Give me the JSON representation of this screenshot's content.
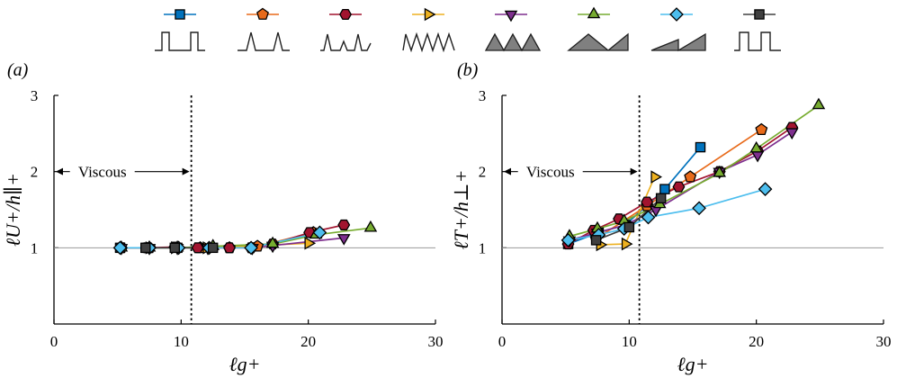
{
  "figure": {
    "panel_labels": [
      "(a)",
      "(b)"
    ],
    "legend": [
      {
        "color": "#0072BD",
        "marker": "square",
        "shape": "rect-widely-spaced-icon"
      },
      {
        "color": "#E86A1A",
        "marker": "pentagon",
        "shape": "narrow-triangles-icon"
      },
      {
        "color": "#A2142F",
        "marker": "hexagon",
        "shape": "mixed-triangles-icon"
      },
      {
        "color": "#EDB120",
        "marker": "triangle-right",
        "shape": "dense-triangles-icon"
      },
      {
        "color": "#7E2F8E",
        "marker": "triangle-down",
        "shape": "filled-triangles-icon"
      },
      {
        "color": "#77AC30",
        "marker": "triangle-up",
        "shape": "wide-triangles-icon"
      },
      {
        "color": "#4DBEEE",
        "marker": "diamond",
        "shape": "sawtooth-icon"
      },
      {
        "color": "#404040",
        "marker": "square",
        "shape": "rect-closely-spaced-icon"
      }
    ]
  },
  "chart_data": [
    {
      "type": "line",
      "panel": "(a)",
      "xlabel": "ℓg+",
      "ylabel": "ℓU+/h∥+",
      "xlim": [
        0,
        30
      ],
      "ylim": [
        0,
        3
      ],
      "xticks": [
        0,
        10,
        20,
        30
      ],
      "yticks": [
        1,
        2,
        3
      ],
      "reference_line_y": 1,
      "viscous_line_x": 10.8,
      "annotation": "Viscous",
      "series": [
        {
          "color": "#0072BD",
          "marker": "square",
          "x": [
            5.2,
            7.3,
            9.7
          ],
          "y": [
            1.0,
            1.0,
            1.0
          ]
        },
        {
          "color": "#E86A1A",
          "marker": "pentagon",
          "x": [
            7.5,
            11.5,
            13.8,
            16.0,
            20.4
          ],
          "y": [
            1.0,
            1.0,
            1.0,
            1.02,
            1.2
          ]
        },
        {
          "color": "#A2142F",
          "marker": "hexagon",
          "x": [
            5.3,
            7.3,
            9.5,
            11.3,
            13.8,
            15.5,
            17.2,
            20.1,
            22.8
          ],
          "y": [
            1.0,
            1.0,
            1.01,
            1.0,
            1.0,
            1.0,
            1.05,
            1.2,
            1.3
          ]
        },
        {
          "color": "#EDB120",
          "marker": "triangle-right",
          "x": [
            7.5,
            9.5,
            12.0,
            20.0
          ],
          "y": [
            1.0,
            1.0,
            1.0,
            1.06
          ]
        },
        {
          "color": "#7E2F8E",
          "marker": "triangle-down",
          "x": [
            5.3,
            7.5,
            9.7,
            12.1,
            15.6,
            17.2,
            22.8
          ],
          "y": [
            1.0,
            1.0,
            1.0,
            1.0,
            1.0,
            1.03,
            1.13
          ]
        },
        {
          "color": "#77AC30",
          "marker": "triangle-up",
          "x": [
            5.3,
            7.5,
            9.7,
            12.5,
            17.2,
            20.6,
            24.9
          ],
          "y": [
            1.0,
            1.0,
            1.0,
            1.02,
            1.05,
            1.17,
            1.26
          ]
        },
        {
          "color": "#4DBEEE",
          "marker": "diamond",
          "x": [
            5.2,
            7.5,
            9.8,
            12.2,
            15.5,
            20.9
          ],
          "y": [
            1.0,
            1.0,
            1.0,
            1.0,
            1.0,
            1.2
          ]
        },
        {
          "color": "#404040",
          "marker": "square",
          "x": [
            7.2,
            9.5,
            12.5
          ],
          "y": [
            1.0,
            1.0,
            1.0
          ]
        }
      ]
    },
    {
      "type": "line",
      "panel": "(b)",
      "xlabel": "ℓg+",
      "ylabel": "ℓT+/h⊥+",
      "xlim": [
        0,
        30
      ],
      "ylim": [
        0,
        3
      ],
      "xticks": [
        0,
        10,
        20,
        30
      ],
      "yticks": [
        1,
        2,
        3
      ],
      "reference_line_y": 1,
      "viscous_line_x": 10.8,
      "annotation": "Viscous",
      "series": [
        {
          "color": "#0072BD",
          "marker": "square",
          "x": [
            5.2,
            7.6,
            9.7,
            12.8,
            15.6
          ],
          "y": [
            1.05,
            1.2,
            1.3,
            1.77,
            2.32
          ]
        },
        {
          "color": "#E86A1A",
          "marker": "pentagon",
          "x": [
            7.4,
            11.4,
            14.8,
            20.4
          ],
          "y": [
            1.12,
            1.55,
            1.93,
            2.55
          ]
        },
        {
          "color": "#A2142F",
          "marker": "hexagon",
          "x": [
            5.2,
            7.2,
            9.2,
            11.4,
            13.9,
            17.1,
            20.1,
            22.8
          ],
          "y": [
            1.05,
            1.23,
            1.38,
            1.6,
            1.8,
            2.0,
            2.27,
            2.58
          ]
        },
        {
          "color": "#EDB120",
          "marker": "triangle-right",
          "x": [
            7.7,
            9.7,
            12.0
          ],
          "y": [
            1.04,
            1.05,
            1.93
          ]
        },
        {
          "color": "#7E2F8E",
          "marker": "triangle-down",
          "x": [
            5.3,
            7.5,
            9.7,
            12.1,
            17.1,
            20.1,
            22.8
          ],
          "y": [
            1.1,
            1.2,
            1.3,
            1.5,
            2.0,
            2.22,
            2.52
          ]
        },
        {
          "color": "#77AC30",
          "marker": "triangle-up",
          "x": [
            5.3,
            7.5,
            9.6,
            12.4,
            17.1,
            20.0,
            24.9
          ],
          "y": [
            1.15,
            1.25,
            1.35,
            1.57,
            1.98,
            2.3,
            2.87
          ]
        },
        {
          "color": "#4DBEEE",
          "marker": "diamond",
          "x": [
            5.2,
            7.6,
            9.6,
            11.5,
            15.5,
            20.7
          ],
          "y": [
            1.1,
            1.17,
            1.25,
            1.4,
            1.52,
            1.77
          ]
        },
        {
          "color": "#404040",
          "marker": "square",
          "x": [
            7.4,
            10.0,
            12.5
          ],
          "y": [
            1.1,
            1.27,
            1.65
          ]
        }
      ]
    }
  ]
}
